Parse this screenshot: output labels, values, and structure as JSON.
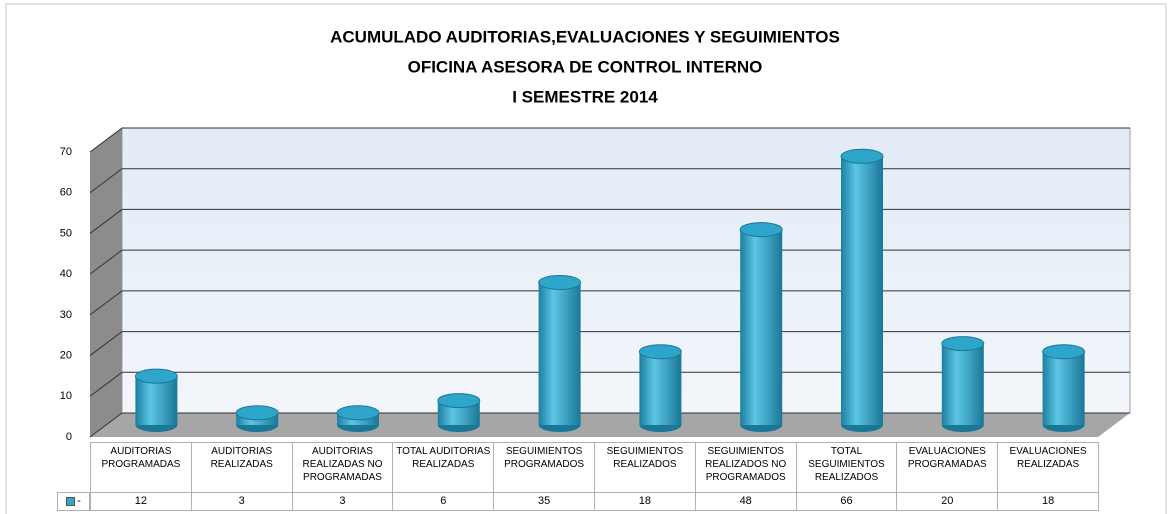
{
  "chart_data": {
    "type": "bar",
    "title": [
      "ACUMULADO AUDITORIAS,EVALUACIONES Y SEGUIMIENTOS",
      "OFICINA ASESORA DE CONTROL INTERNO",
      "I SEMESTRE 2014"
    ],
    "categories": [
      "AUDITORIAS PROGRAMADAS",
      "AUDITORIAS REALIZADAS",
      "AUDITORIAS REALIZADAS NO PROGRAMADAS",
      "TOTAL AUDITORIAS REALIZADAS",
      "SEGUIMIENTOS PROGRAMADOS",
      "SEGUIMIENTOS REALIZADOS",
      "SEGUIMIENTOS REALIZADOS NO PROGRAMADOS",
      "TOTAL SEGUIMIENTOS REALIZADOS",
      "EVALUACIONES PROGRAMADAS",
      "EVALUACIONES REALIZADAS"
    ],
    "series": [
      {
        "name": "-",
        "color": "#2ea6cc",
        "values": [
          12,
          3,
          3,
          6,
          35,
          18,
          48,
          66,
          20,
          18
        ]
      }
    ],
    "ylim": [
      0,
      70
    ],
    "yticks": [
      0,
      10,
      20,
      30,
      40,
      50,
      60,
      70
    ],
    "grid": true
  }
}
